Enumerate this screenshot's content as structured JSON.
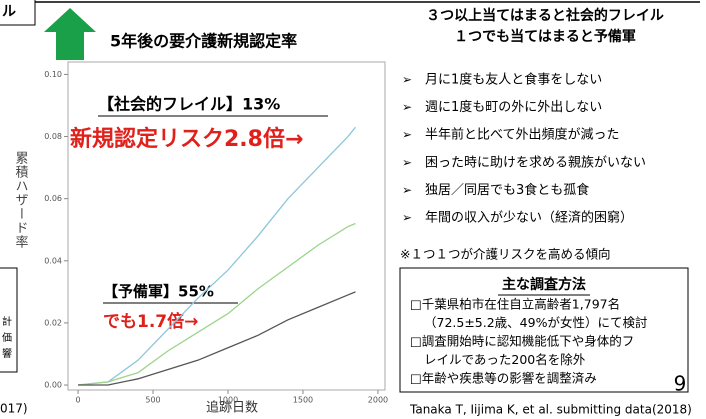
{
  "edge_fragments": {
    "top_left": "ル",
    "bottom_left": "017)",
    "left_box": [
      "計",
      "価",
      "響"
    ]
  },
  "chart_data": {
    "type": "line",
    "title": "5年後の要介護新規認定率",
    "y_label": "累積ハザード率",
    "x_label": "追跡日数",
    "x": [
      0,
      200,
      400,
      600,
      800,
      1000,
      1200,
      1400,
      1600,
      1800,
      1850
    ],
    "series": [
      {
        "color": "#8ec5dc",
        "values": [
          0,
          0.001,
          0.008,
          0.018,
          0.028,
          0.037,
          0.048,
          0.06,
          0.07,
          0.08,
          0.083
        ]
      },
      {
        "color": "#9bd48a",
        "values": [
          0,
          0.001,
          0.004,
          0.011,
          0.017,
          0.023,
          0.031,
          0.038,
          0.045,
          0.051,
          0.052
        ]
      },
      {
        "color": "#555555",
        "values": [
          0,
          0,
          0.002,
          0.005,
          0.008,
          0.012,
          0.016,
          0.021,
          0.025,
          0.029,
          0.03
        ]
      }
    ],
    "xlim": [
      -67,
      2047
    ],
    "xticks": [
      0,
      500,
      1000,
      1500,
      2000
    ],
    "ylim": [
      -0.0016,
      0.104
    ],
    "yticks": [
      {
        "value": 0,
        "label": "0.00"
      },
      {
        "value": 0.02,
        "label": "0.02"
      },
      {
        "value": 0.04,
        "label": "0.04"
      },
      {
        "value": 0.06,
        "label": "0.06"
      },
      {
        "value": 0.08,
        "label": "0.08"
      },
      {
        "value": 0.1,
        "label": "0.10"
      }
    ],
    "annotations": [
      "【社会的フレイル】13%",
      "新規認定リスク2.8倍→",
      "【予備軍】55%",
      "でも1.7倍→"
    ]
  },
  "criteria": {
    "heading": [
      "３つ以上当てはまると社会的フレイル",
      "１つでも当てはまると予備軍"
    ],
    "items": [
      "月に1度も友人と食事をしない",
      "週に1度も町の外に外出しない",
      "半年前と比べて外出頻度が減った",
      "困った時に助けを求める親族がいない",
      "独居／同居でも3食とも孤食",
      "年間の収入が少ない（経済的困窮）"
    ],
    "note": "※１つ１つが介護リスクを高める傾向"
  },
  "methods": {
    "title": "主な調査方法",
    "lines": [
      "□千葉県柏市在住自立高齢者1,797名",
      "（72.5±5.2歳、49%が女性）にて検討",
      "□調査開始時に認知機能低下や身体的フ",
      "レイルであった200名を除外",
      "□年齢や疾患等の影響を調整済み"
    ]
  },
  "page_number": "9",
  "citation": "Tanaka T, Iijima K, et al. submitting data(2018)"
}
